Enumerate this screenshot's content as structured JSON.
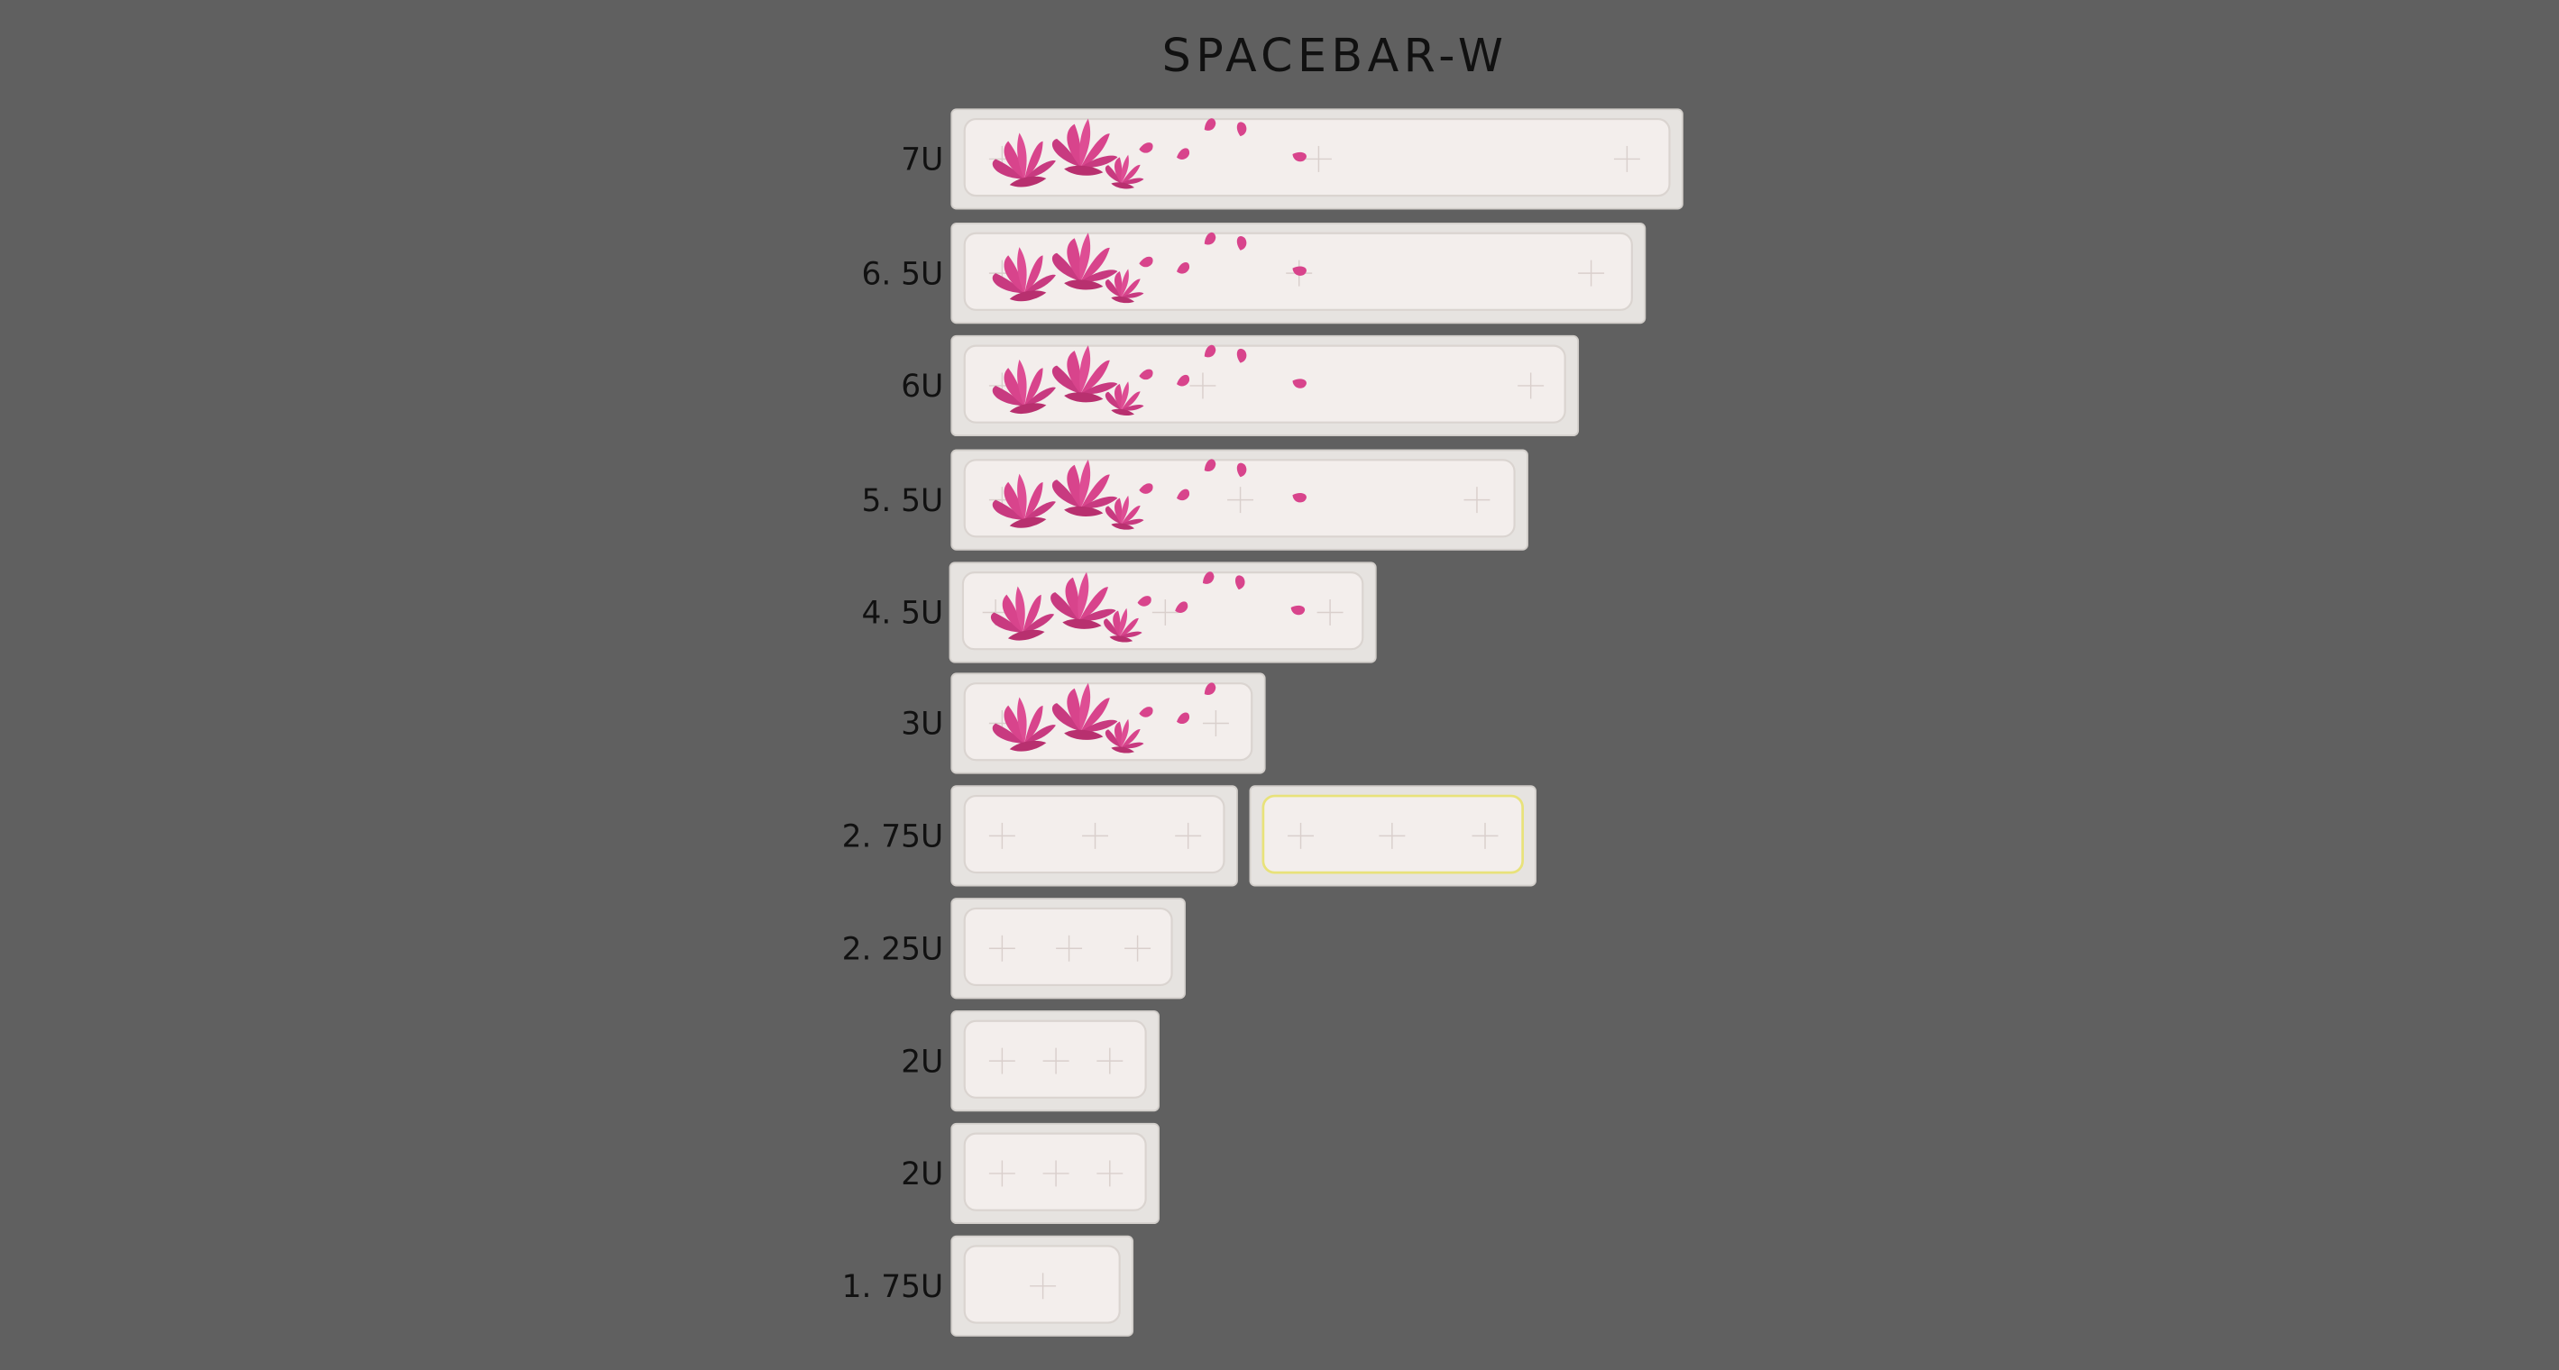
{
  "title": "SPACEBAR-W",
  "rows": [
    {
      "label": "7U"
    },
    {
      "label": "6. 5U"
    },
    {
      "label": "6U"
    },
    {
      "label": "5. 5U"
    },
    {
      "label": "4. 5U"
    },
    {
      "label": "3U"
    },
    {
      "label": "2. 75U"
    },
    {
      "label": "2. 25U"
    },
    {
      "label": "2U"
    },
    {
      "label": "2U"
    },
    {
      "label": "1. 75U"
    }
  ]
}
